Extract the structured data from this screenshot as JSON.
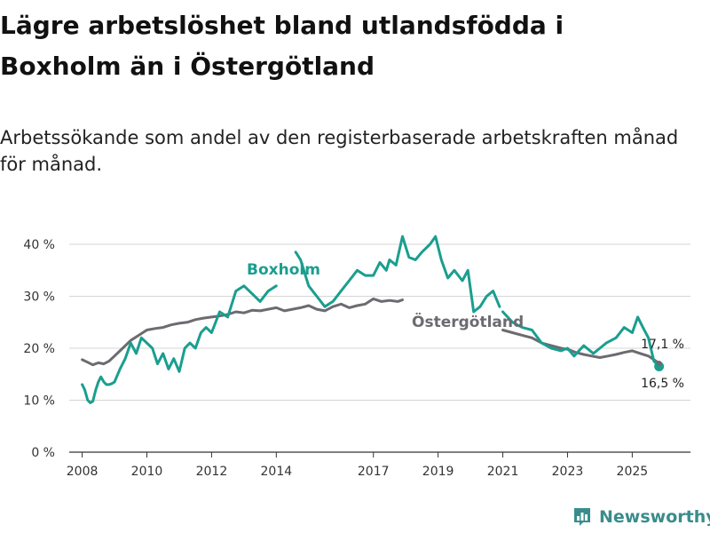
{
  "header": {
    "title": "Lägre arbetslöshet bland utlandsfödda i Boxholm än i Östergötland",
    "subtitle": "Arbetssökande som andel av den registerbaserade arbetskraften månad för månad."
  },
  "branding": {
    "name": "Newsworthy",
    "color": "#3a8c8c"
  },
  "chart_data": {
    "type": "line",
    "title": "Lägre arbetslöshet bland utlandsfödda i Boxholm än i Östergötland",
    "xlabel": "",
    "ylabel": "",
    "xlim": [
      2007.6,
      2026.8
    ],
    "ylim": [
      0,
      40
    ],
    "yticks": [
      0,
      10,
      20,
      30,
      40
    ],
    "ytick_labels": [
      "0 %",
      "10 %",
      "20 %",
      "30 %",
      "40 %"
    ],
    "xticks": [
      2008,
      2010,
      2012,
      2014,
      2017,
      2019,
      2021,
      2023,
      2025
    ],
    "xtick_labels": [
      "2008",
      "2010",
      "2012",
      "2014",
      "2017",
      "2019",
      "2021",
      "2023",
      "2025"
    ],
    "grid": true,
    "series": [
      {
        "name": "Boxholm",
        "color": "#1a9e8f",
        "label": "Boxholm",
        "end_label": "16,5 %",
        "gaps_after": [
          2014.0,
          2020.9
        ],
        "x": [
          2008.0,
          2008.08,
          2008.17,
          2008.25,
          2008.33,
          2008.42,
          2008.5,
          2008.58,
          2008.67,
          2008.75,
          2008.83,
          2008.92,
          2009.0,
          2009.17,
          2009.33,
          2009.5,
          2009.67,
          2009.83,
          2010.0,
          2010.17,
          2010.33,
          2010.5,
          2010.67,
          2010.83,
          2011.0,
          2011.17,
          2011.33,
          2011.5,
          2011.67,
          2011.83,
          2012.0,
          2012.25,
          2012.5,
          2012.75,
          2013.0,
          2013.25,
          2013.5,
          2013.75,
          2014.0,
          2014.6,
          2014.75,
          2015.0,
          2015.25,
          2015.5,
          2015.75,
          2016.0,
          2016.25,
          2016.5,
          2016.75,
          2017.0,
          2017.2,
          2017.4,
          2017.5,
          2017.7,
          2017.9,
          2018.1,
          2018.3,
          2018.5,
          2018.75,
          2018.92,
          2019.1,
          2019.3,
          2019.5,
          2019.75,
          2019.92,
          2020.1,
          2020.3,
          2020.5,
          2020.7,
          2020.9,
          2021.0,
          2021.3,
          2021.6,
          2021.9,
          2022.2,
          2022.5,
          2022.8,
          2023.0,
          2023.2,
          2023.5,
          2023.8,
          2024.0,
          2024.2,
          2024.5,
          2024.75,
          2025.0,
          2025.17,
          2025.33,
          2025.5,
          2025.67,
          2025.83
        ],
        "y": [
          13,
          12,
          10,
          9.5,
          9.8,
          12,
          13.5,
          14.5,
          13.5,
          13,
          13,
          13.2,
          13.5,
          16,
          18,
          21,
          19,
          22,
          21,
          20,
          17,
          19,
          16,
          18,
          15.5,
          20,
          21,
          20,
          23,
          24,
          23,
          27,
          26,
          31,
          32,
          30.5,
          29,
          31,
          32,
          38.5,
          37,
          32,
          30,
          28,
          29,
          31,
          33,
          35,
          34,
          34,
          36.5,
          35,
          37,
          36,
          41.5,
          37.5,
          37,
          38.5,
          40,
          41.5,
          37,
          33.5,
          35,
          33,
          35,
          27,
          28,
          30,
          31,
          28,
          27,
          25,
          24,
          23.5,
          21,
          20,
          19.5,
          20,
          18.5,
          20.5,
          19,
          20,
          21,
          22,
          24,
          23,
          26,
          24,
          22,
          17.5,
          16.5
        ]
      },
      {
        "name": "Östergötland",
        "color": "#6b6b70",
        "label": "Östergötland",
        "end_label": "17,1 %",
        "gaps_after": [
          2017.9
        ],
        "x": [
          2008.0,
          2008.17,
          2008.33,
          2008.5,
          2008.67,
          2008.83,
          2009.0,
          2009.25,
          2009.5,
          2009.75,
          2010.0,
          2010.25,
          2010.5,
          2010.75,
          2011.0,
          2011.25,
          2011.5,
          2011.75,
          2012.0,
          2012.25,
          2012.5,
          2012.75,
          2013.0,
          2013.25,
          2013.5,
          2013.75,
          2014.0,
          2014.25,
          2014.5,
          2014.75,
          2015.0,
          2015.25,
          2015.5,
          2015.75,
          2016.0,
          2016.25,
          2016.5,
          2016.75,
          2017.0,
          2017.25,
          2017.5,
          2017.75,
          2017.9,
          2021.0,
          2021.3,
          2021.6,
          2021.9,
          2022.2,
          2022.5,
          2022.8,
          2023.0,
          2023.25,
          2023.5,
          2023.75,
          2024.0,
          2024.25,
          2024.5,
          2024.75,
          2025.0,
          2025.25,
          2025.5,
          2025.67,
          2025.83
        ],
        "y": [
          17.8,
          17.3,
          16.8,
          17.2,
          17.0,
          17.5,
          18.5,
          20,
          21.5,
          22.5,
          23.5,
          23.8,
          24,
          24.5,
          24.8,
          25,
          25.5,
          25.8,
          26,
          26.2,
          26.5,
          27,
          26.8,
          27.3,
          27.2,
          27.5,
          27.8,
          27.2,
          27.5,
          27.8,
          28.2,
          27.5,
          27.2,
          28,
          28.5,
          27.8,
          28.2,
          28.5,
          29.5,
          29,
          29.2,
          29,
          29.3,
          23.5,
          23,
          22.5,
          22,
          21,
          20.5,
          20,
          19.8,
          19.2,
          18.8,
          18.5,
          18.2,
          18.5,
          18.8,
          19.2,
          19.5,
          19,
          18.5,
          17.8,
          17.1
        ]
      }
    ]
  }
}
